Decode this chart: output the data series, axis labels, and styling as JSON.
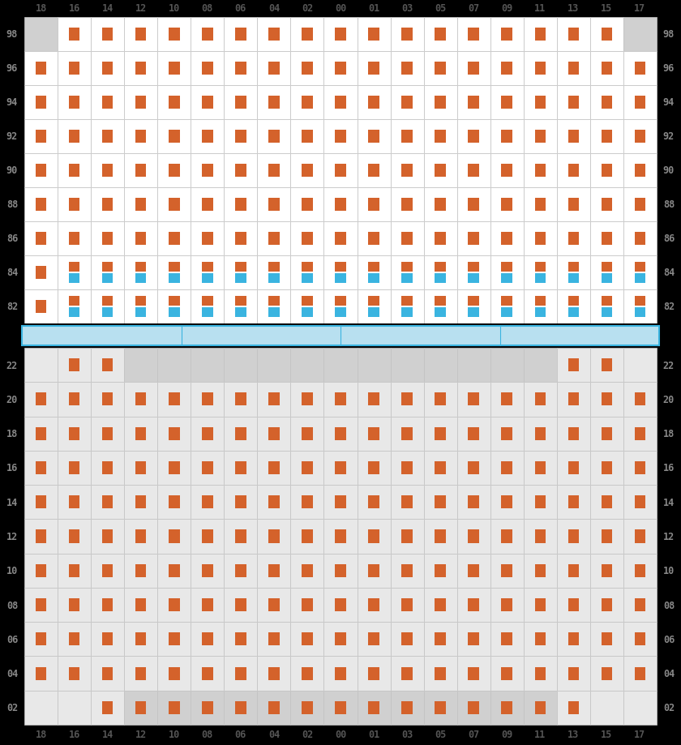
{
  "col_labels": [
    "18",
    "16",
    "14",
    "12",
    "10",
    "08",
    "06",
    "04",
    "02",
    "00",
    "01",
    "03",
    "05",
    "07",
    "09",
    "11",
    "13",
    "15",
    "17"
  ],
  "top_rows": [
    98,
    96,
    94,
    92,
    90,
    88,
    86,
    84,
    82
  ],
  "bottom_rows": [
    22,
    20,
    18,
    16,
    14,
    12,
    10,
    8,
    6,
    4,
    2
  ],
  "orange": "#d4622b",
  "blue": "#3ab4e0",
  "bg_white": "#ffffff",
  "bg_gray": "#d0d0d0",
  "bg_light_gray": "#e8e8e8",
  "grid_line": "#c8c8c8",
  "black": "#000000",
  "sep_blue_light": "#b8e0f0",
  "sep_blue": "#3ab4e0",
  "text_light": "#999999",
  "col_label_color": "#555555",
  "row_label_color": "#888888"
}
